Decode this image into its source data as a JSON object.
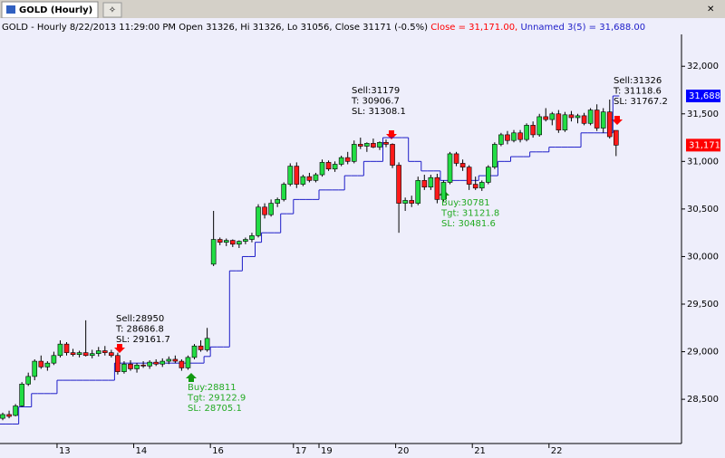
{
  "tab": "GOLD (Hourly)",
  "chart_data": {
    "type": "candlestick",
    "header": {
      "main": "GOLD - Hourly 8/22/2013 11:29:00 PM Open 31326, Hi 31326, Lo 31056, Close 31171 (-0.5%)",
      "close": "Close = 31,171.00,",
      "study": "Unnamed 3(5) = 31,688.00"
    },
    "categories": [
      null,
      null,
      null,
      null,
      null,
      null,
      null,
      null,
      null,
      "13",
      null,
      null,
      null,
      null,
      null,
      null,
      null,
      null,
      null,
      null,
      null,
      "14",
      null,
      null,
      null,
      null,
      null,
      null,
      null,
      null,
      null,
      null,
      null,
      "16",
      null,
      null,
      null,
      null,
      null,
      null,
      null,
      null,
      null,
      null,
      null,
      null,
      "17",
      null,
      null,
      null,
      "19",
      null,
      null,
      null,
      null,
      null,
      null,
      null,
      null,
      null,
      null,
      null,
      "20",
      null,
      null,
      null,
      null,
      null,
      null,
      null,
      null,
      null,
      null,
      null,
      "21",
      null,
      null,
      null,
      null,
      null,
      null,
      null,
      null,
      null,
      null,
      null,
      "22",
      null,
      null,
      null,
      null,
      null,
      null,
      null,
      null,
      null,
      null
    ],
    "candles": [
      [
        28300,
        28360,
        28280,
        28340
      ],
      [
        28340,
        28380,
        28300,
        28320
      ],
      [
        28330,
        28450,
        28320,
        28430
      ],
      [
        28430,
        28680,
        28420,
        28660
      ],
      [
        28660,
        28780,
        28640,
        28740
      ],
      [
        28740,
        28920,
        28700,
        28900
      ],
      [
        28900,
        28960,
        28820,
        28840
      ],
      [
        28840,
        28900,
        28800,
        28880
      ],
      [
        28880,
        29000,
        28860,
        28960
      ],
      [
        28960,
        29120,
        28940,
        29080
      ],
      [
        29080,
        29100,
        28960,
        28990
      ],
      [
        28990,
        29030,
        28950,
        28970
      ],
      [
        28970,
        29010,
        28940,
        28990
      ],
      [
        28990,
        29330,
        28950,
        28960
      ],
      [
        28960,
        29020,
        28930,
        28980
      ],
      [
        28980,
        29050,
        28950,
        29010
      ],
      [
        29010,
        29060,
        28960,
        28990
      ],
      [
        28990,
        29020,
        28940,
        28960
      ],
      [
        28960,
        28990,
        28760,
        28790
      ],
      [
        28790,
        28900,
        28770,
        28870
      ],
      [
        28870,
        28910,
        28800,
        28820
      ],
      [
        28820,
        28880,
        28780,
        28860
      ],
      [
        28860,
        28900,
        28830,
        28850
      ],
      [
        28850,
        28910,
        28820,
        28890
      ],
      [
        28890,
        28920,
        28850,
        28870
      ],
      [
        28870,
        28930,
        28840,
        28900
      ],
      [
        28900,
        28950,
        28870,
        28920
      ],
      [
        28920,
        28960,
        28880,
        28900
      ],
      [
        28900,
        28920,
        28800,
        28830
      ],
      [
        28830,
        28960,
        28810,
        28940
      ],
      [
        28940,
        29080,
        28920,
        29060
      ],
      [
        29060,
        29120,
        29000,
        29020
      ],
      [
        29020,
        29250,
        29000,
        29140
      ],
      [
        29920,
        30480,
        29900,
        30180
      ],
      [
        30180,
        30200,
        30120,
        30150
      ],
      [
        30150,
        30190,
        30110,
        30170
      ],
      [
        30170,
        30180,
        30100,
        30130
      ],
      [
        30130,
        30170,
        30090,
        30160
      ],
      [
        30160,
        30200,
        30130,
        30180
      ],
      [
        30180,
        30250,
        30150,
        30220
      ],
      [
        30220,
        30550,
        30200,
        30520
      ],
      [
        30520,
        30560,
        30400,
        30440
      ],
      [
        30440,
        30600,
        30420,
        30560
      ],
      [
        30560,
        30620,
        30520,
        30600
      ],
      [
        30600,
        30780,
        30580,
        30760
      ],
      [
        30760,
        30980,
        30740,
        30950
      ],
      [
        30950,
        30990,
        30720,
        30760
      ],
      [
        30760,
        30860,
        30740,
        30840
      ],
      [
        30840,
        30880,
        30780,
        30800
      ],
      [
        30800,
        30880,
        30780,
        30860
      ],
      [
        30860,
        31020,
        30840,
        30990
      ],
      [
        30990,
        31010,
        30900,
        30920
      ],
      [
        30920,
        31000,
        30890,
        30970
      ],
      [
        30970,
        31060,
        30950,
        31040
      ],
      [
        31040,
        31100,
        30970,
        31000
      ],
      [
        31000,
        31220,
        30980,
        31180
      ],
      [
        31180,
        31250,
        31130,
        31160
      ],
      [
        31160,
        31200,
        31100,
        31190
      ],
      [
        31190,
        31240,
        31140,
        31150
      ],
      [
        31150,
        31210,
        31120,
        31200
      ],
      [
        31200,
        31230,
        31150,
        31180
      ],
      [
        31180,
        31190,
        30930,
        30960
      ],
      [
        30960,
        30990,
        30250,
        30560
      ],
      [
        30560,
        30620,
        30480,
        30590
      ],
      [
        30590,
        30640,
        30520,
        30560
      ],
      [
        30560,
        30840,
        30540,
        30800
      ],
      [
        30800,
        30860,
        30700,
        30730
      ],
      [
        30730,
        30860,
        30700,
        30830
      ],
      [
        30830,
        30870,
        30560,
        30600
      ],
      [
        30600,
        30800,
        30580,
        30780
      ],
      [
        30780,
        31100,
        30760,
        31080
      ],
      [
        31080,
        31100,
        30950,
        30980
      ],
      [
        30980,
        31020,
        30900,
        30940
      ],
      [
        30940,
        30960,
        30700,
        30760
      ],
      [
        30760,
        30840,
        30700,
        30720
      ],
      [
        30720,
        30800,
        30690,
        30780
      ],
      [
        30780,
        30960,
        30760,
        30940
      ],
      [
        30940,
        31200,
        30920,
        31180
      ],
      [
        31180,
        31300,
        31160,
        31280
      ],
      [
        31280,
        31320,
        31180,
        31220
      ],
      [
        31220,
        31330,
        31200,
        31300
      ],
      [
        31300,
        31330,
        31200,
        31230
      ],
      [
        31230,
        31400,
        31210,
        31380
      ],
      [
        31380,
        31420,
        31250,
        31280
      ],
      [
        31280,
        31500,
        31260,
        31470
      ],
      [
        31470,
        31560,
        31420,
        31440
      ],
      [
        31440,
        31520,
        31380,
        31500
      ],
      [
        31500,
        31540,
        31300,
        31330
      ],
      [
        31330,
        31520,
        31310,
        31490
      ],
      [
        31490,
        31530,
        31420,
        31460
      ],
      [
        31460,
        31500,
        31400,
        31480
      ],
      [
        31480,
        31510,
        31380,
        31400
      ],
      [
        31400,
        31560,
        31380,
        31540
      ],
      [
        31540,
        31600,
        31320,
        31350
      ],
      [
        31350,
        31560,
        31300,
        31520
      ],
      [
        31520,
        31650,
        31240,
        31260
      ],
      [
        31326,
        31326,
        31056,
        31171
      ]
    ],
    "up_color": "#22dd44",
    "down_color": "#ff1a1a",
    "series": [
      {
        "name": "Unnamed 3(5)",
        "color": "#1c1cc8",
        "values": [
          28240,
          28240,
          28240,
          28420,
          28420,
          28560,
          28560,
          28560,
          28560,
          28700,
          28700,
          28700,
          28700,
          28700,
          28700,
          28700,
          28700,
          28700,
          28880,
          28880,
          28880,
          28880,
          28880,
          28880,
          28880,
          28880,
          28880,
          28880,
          28880,
          28880,
          28880,
          28880,
          28950,
          29050,
          29050,
          29050,
          29850,
          29850,
          30000,
          30000,
          30150,
          30250,
          30250,
          30250,
          30450,
          30450,
          30600,
          30600,
          30600,
          30600,
          30700,
          30700,
          30700,
          30700,
          30850,
          30850,
          30850,
          31000,
          31000,
          31000,
          31250,
          31250,
          31250,
          31250,
          31000,
          31000,
          30900,
          30900,
          30900,
          30800,
          30800,
          30800,
          30800,
          30800,
          30800,
          30850,
          30850,
          30850,
          31000,
          31000,
          31050,
          31050,
          31050,
          31100,
          31100,
          31100,
          31150,
          31150,
          31150,
          31150,
          31150,
          31300,
          31300,
          31300,
          31300,
          31300,
          31688
        ]
      }
    ],
    "markers": [
      {
        "value": 31688,
        "label": "31,688",
        "color": "#0000ff"
      },
      {
        "value": 31171,
        "label": "31,171",
        "color": "#ff0000"
      }
    ],
    "annotations": [
      {
        "lines": [
          "Sell:28950",
          "T: 28686.8",
          "SL: 29161.7"
        ],
        "color": "#000000"
      },
      {
        "lines": [
          "Buy:28811",
          "Tgt: 29122.9",
          "SL: 28705.1"
        ],
        "color": "#22aa22"
      },
      {
        "lines": [
          "Sell:31179",
          "T: 30906.7",
          "SL: 31308.1"
        ],
        "color": "#000000"
      },
      {
        "lines": [
          "Buy:30781",
          "Tgt: 31121.8",
          "SL: 30481.6"
        ],
        "color": "#22aa22"
      },
      {
        "lines": [
          "Sell:31326",
          "T: 31118.6",
          "SL: 31767.2"
        ],
        "color": "#000000"
      }
    ],
    "ylim": [
      28035,
      32335
    ],
    "yticks": [
      {
        "value": 28500,
        "label": "28,500"
      },
      {
        "value": 29000,
        "label": "29,000"
      },
      {
        "value": 29500,
        "label": "29,500"
      },
      {
        "value": 30000,
        "label": "30,000"
      },
      {
        "value": 30500,
        "label": "30,500"
      },
      {
        "value": 31000,
        "label": "31,000"
      },
      {
        "value": 31500,
        "label": "31,500"
      },
      {
        "value": 32000,
        "label": "32,000"
      }
    ]
  }
}
